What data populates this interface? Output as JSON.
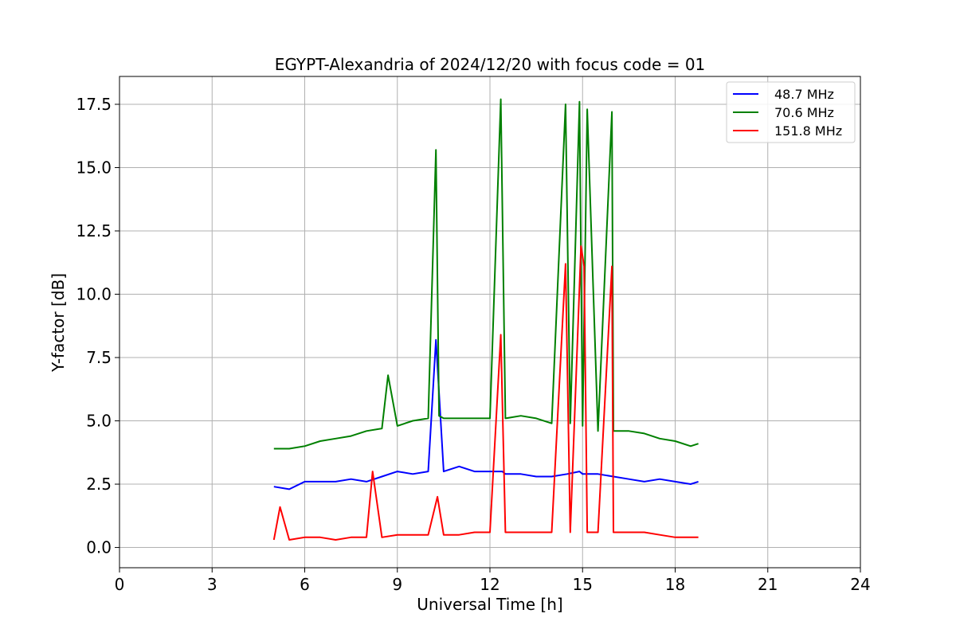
{
  "chart_data": {
    "type": "line",
    "title": "EGYPT-Alexandria of 2024/12/20 with focus code = 01",
    "xlabel": "Universal Time [h]",
    "ylabel": "Y-factor [dB]",
    "xlim": [
      0,
      24
    ],
    "ylim": [
      -0.8,
      18.6
    ],
    "xticks": [
      0,
      3,
      6,
      9,
      12,
      15,
      18,
      21,
      24
    ],
    "yticks": [
      0.0,
      2.5,
      5.0,
      7.5,
      10.0,
      12.5,
      15.0,
      17.5
    ],
    "xtick_labels": [
      "0",
      "3",
      "6",
      "9",
      "12",
      "15",
      "18",
      "21",
      "24"
    ],
    "ytick_labels": [
      "0.0",
      "2.5",
      "5.0",
      "7.5",
      "10.0",
      "12.5",
      "15.0",
      "17.5"
    ],
    "grid": true,
    "legend_position": "top-right",
    "series": [
      {
        "name": "48.7 MHz",
        "color": "#0000ff",
        "x": [
          5.0,
          5.5,
          6.0,
          6.5,
          7.0,
          7.5,
          8.0,
          8.5,
          9.0,
          9.5,
          10.0,
          10.25,
          10.5,
          11.0,
          11.5,
          12.0,
          12.4,
          12.5,
          13.0,
          13.5,
          14.0,
          14.5,
          14.9,
          15.0,
          15.5,
          16.0,
          16.5,
          17.0,
          17.5,
          18.0,
          18.5,
          18.75
        ],
        "y": [
          2.4,
          2.3,
          2.6,
          2.6,
          2.6,
          2.7,
          2.6,
          2.8,
          3.0,
          2.9,
          3.0,
          8.2,
          3.0,
          3.2,
          3.0,
          3.0,
          3.0,
          2.9,
          2.9,
          2.8,
          2.8,
          2.9,
          3.0,
          2.9,
          2.9,
          2.8,
          2.7,
          2.6,
          2.7,
          2.6,
          2.5,
          2.6
        ]
      },
      {
        "name": "70.6 MHz",
        "color": "#008000",
        "x": [
          5.0,
          5.5,
          6.0,
          6.5,
          7.0,
          7.5,
          8.0,
          8.5,
          8.7,
          9.0,
          9.5,
          10.0,
          10.25,
          10.35,
          10.5,
          11.0,
          11.5,
          12.0,
          12.35,
          12.5,
          13.0,
          13.5,
          14.0,
          14.45,
          14.6,
          14.9,
          15.0,
          15.15,
          15.5,
          15.95,
          16.0,
          16.5,
          17.0,
          17.5,
          18.0,
          18.5,
          18.75
        ],
        "y": [
          3.9,
          3.9,
          4.0,
          4.2,
          4.3,
          4.4,
          4.6,
          4.7,
          6.8,
          4.8,
          5.0,
          5.1,
          15.7,
          5.2,
          5.1,
          5.1,
          5.1,
          5.1,
          17.7,
          5.1,
          5.2,
          5.1,
          4.9,
          17.5,
          4.9,
          17.6,
          4.8,
          17.3,
          4.6,
          17.2,
          4.6,
          4.6,
          4.5,
          4.3,
          4.2,
          4.0,
          4.1
        ]
      },
      {
        "name": "151.8 MHz",
        "color": "#ff0000",
        "x": [
          5.0,
          5.2,
          5.5,
          6.0,
          6.5,
          7.0,
          7.5,
          8.0,
          8.2,
          8.5,
          9.0,
          9.5,
          10.0,
          10.3,
          10.5,
          11.0,
          11.5,
          12.0,
          12.35,
          12.5,
          13.0,
          13.5,
          14.0,
          14.45,
          14.6,
          14.95,
          15.05,
          15.15,
          15.5,
          15.95,
          16.0,
          16.5,
          17.0,
          17.5,
          18.0,
          18.5,
          18.75
        ],
        "y": [
          0.3,
          1.6,
          0.3,
          0.4,
          0.4,
          0.3,
          0.4,
          0.4,
          3.0,
          0.4,
          0.5,
          0.5,
          0.5,
          2.0,
          0.5,
          0.5,
          0.6,
          0.6,
          8.4,
          0.6,
          0.6,
          0.6,
          0.6,
          11.2,
          0.6,
          11.9,
          11.1,
          0.6,
          0.6,
          11.1,
          0.6,
          0.6,
          0.6,
          0.5,
          0.4,
          0.4,
          0.4
        ]
      }
    ]
  }
}
